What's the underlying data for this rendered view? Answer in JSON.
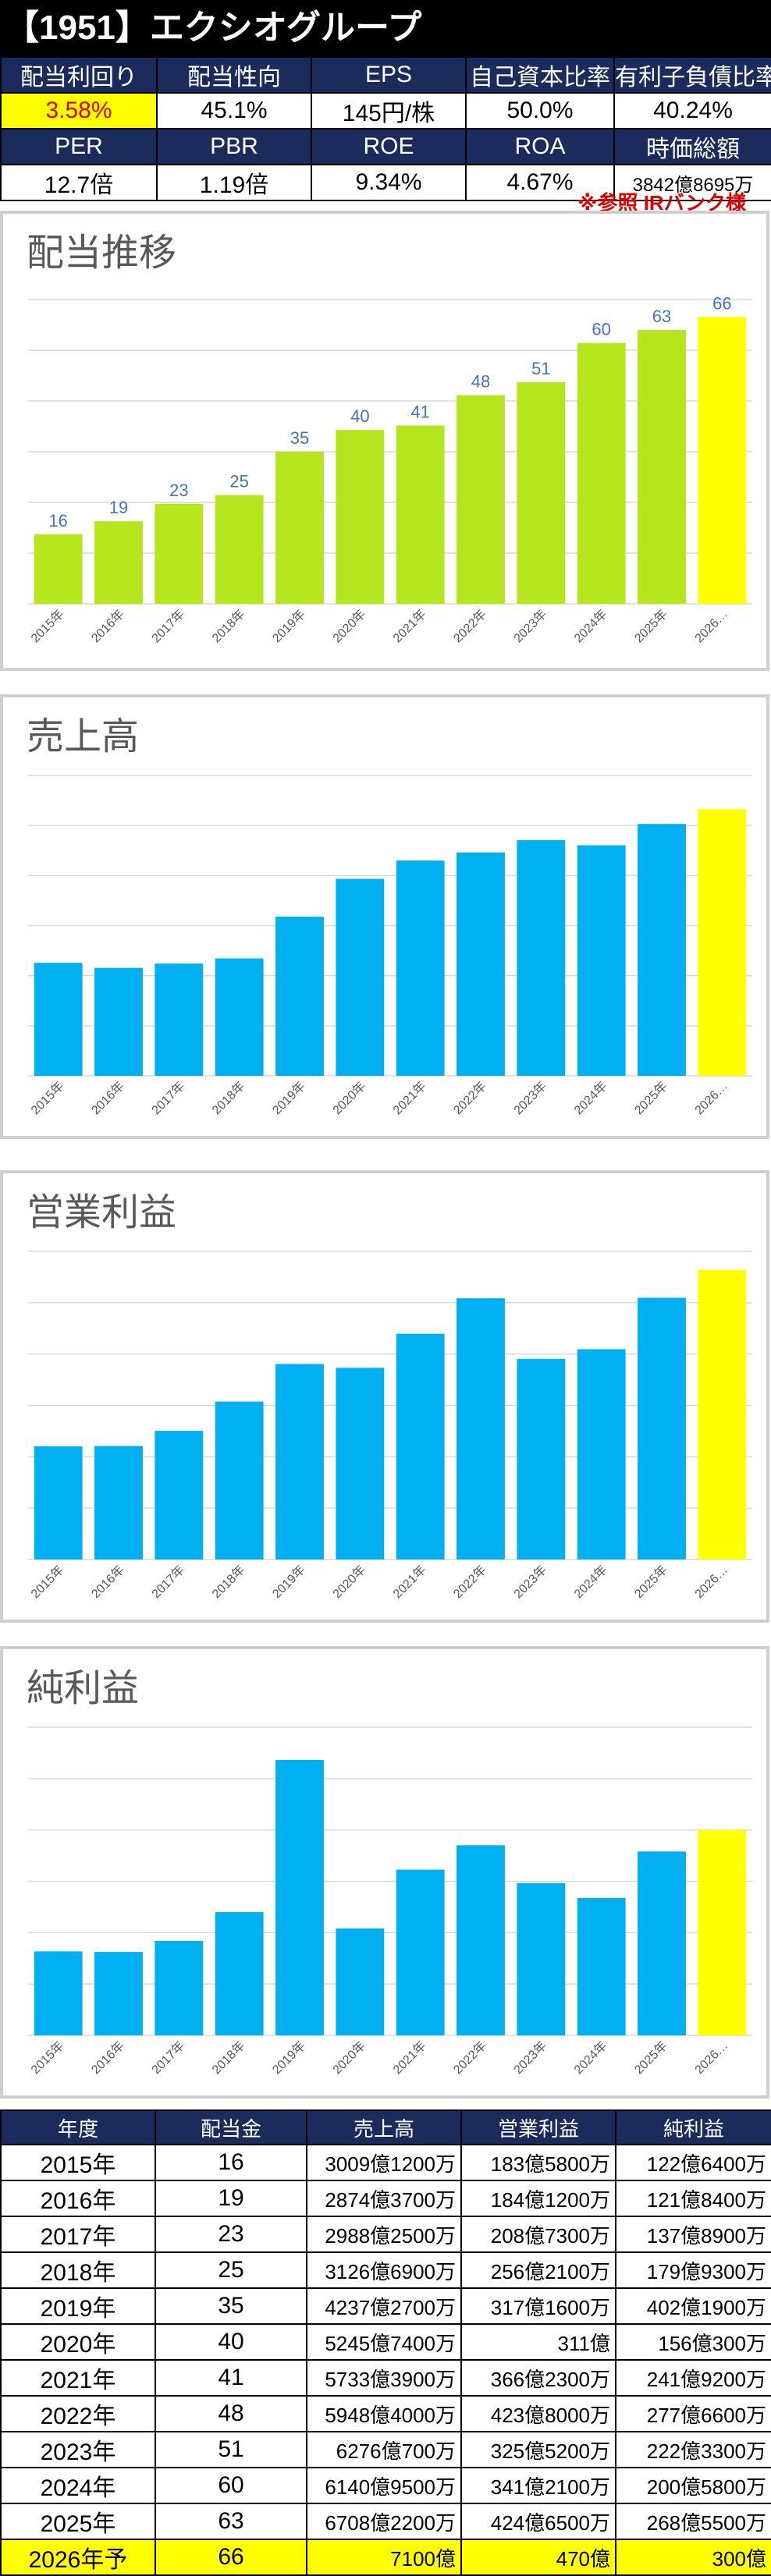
{
  "header": {
    "title": "【1951】エクシオグループ"
  },
  "metrics": {
    "row1": [
      {
        "label": "配当利回り",
        "value": "3.58%"
      },
      {
        "label": "配当性向",
        "value": "45.1%"
      },
      {
        "label": "EPS",
        "value": "145円/株"
      },
      {
        "label": "自己資本比率",
        "value": "50.0%"
      },
      {
        "label": "有利子負債比率",
        "value": "40.24%"
      }
    ],
    "row2": [
      {
        "label": "PER",
        "value": "12.7倍"
      },
      {
        "label": "PBR",
        "value": "1.19倍"
      },
      {
        "label": "ROE",
        "value": "9.34%"
      },
      {
        "label": "ROA",
        "value": "4.67%"
      },
      {
        "label": "時価総額",
        "value": "3842億8695万"
      }
    ]
  },
  "source_note": "※参照 IRバンク様",
  "colors": {
    "green": "#b5e61d",
    "blue": "#00b0f0",
    "yellow": "#ffff00",
    "navy": "#1a2b5c",
    "label_blue": "#4472c4"
  },
  "chart_data": [
    {
      "type": "bar",
      "title": "配当推移",
      "categories": [
        "2015年",
        "2016年",
        "2017年",
        "2018年",
        "2019年",
        "2020年",
        "2021年",
        "2022年",
        "2023年",
        "2024年",
        "2025年",
        "2026…"
      ],
      "values": [
        16,
        19,
        23,
        25,
        35,
        40,
        41,
        48,
        51,
        60,
        63,
        66
      ],
      "data_labels": [
        "16",
        "19",
        "23",
        "25",
        "35",
        "40",
        "41",
        "48",
        "51",
        "60",
        "63",
        "66"
      ],
      "ylim": [
        0,
        70
      ],
      "grid": true,
      "unit": "円"
    },
    {
      "type": "bar",
      "title": "売上高",
      "categories": [
        "2015年",
        "2016年",
        "2017年",
        "2018年",
        "2019年",
        "2020年",
        "2021年",
        "2022年",
        "2023年",
        "2024年",
        "2025年",
        "2026…"
      ],
      "values": [
        3009.12,
        2874.37,
        2988.25,
        3126.69,
        4237.27,
        5245.74,
        5733.39,
        5948.4,
        6276.07,
        6140.95,
        6708.22,
        7100
      ],
      "ylim": [
        0,
        8000
      ],
      "grid": true,
      "unit": "億円"
    },
    {
      "type": "bar",
      "title": "営業利益",
      "categories": [
        "2015年",
        "2016年",
        "2017年",
        "2018年",
        "2019年",
        "2020年",
        "2021年",
        "2022年",
        "2023年",
        "2024年",
        "2025年",
        "2026…"
      ],
      "values": [
        183.58,
        184.12,
        208.73,
        256.21,
        317.16,
        311,
        366.23,
        423.8,
        325.52,
        341.21,
        424.65,
        470
      ],
      "ylim": [
        0,
        500
      ],
      "grid": true,
      "unit": "億円"
    },
    {
      "type": "bar",
      "title": "純利益",
      "categories": [
        "2015年",
        "2016年",
        "2017年",
        "2018年",
        "2019年",
        "2020年",
        "2021年",
        "2022年",
        "2023年",
        "2024年",
        "2025年",
        "2026…"
      ],
      "values": [
        122.64,
        121.84,
        137.89,
        179.93,
        402.19,
        156.03,
        241.92,
        277.66,
        222.33,
        200.58,
        268.55,
        300
      ],
      "ylim": [
        0,
        450
      ],
      "grid": true,
      "unit": "億円"
    }
  ],
  "table": {
    "headers": [
      "年度",
      "配当金",
      "売上高",
      "営業利益",
      "純利益"
    ],
    "rows": [
      [
        "2015年",
        "16",
        "3009億1200万",
        "183億5800万",
        "122億6400万"
      ],
      [
        "2016年",
        "19",
        "2874億3700万",
        "184億1200万",
        "121億8400万"
      ],
      [
        "2017年",
        "23",
        "2988億2500万",
        "208億7300万",
        "137億8900万"
      ],
      [
        "2018年",
        "25",
        "3126億6900万",
        "256億2100万",
        "179億9300万"
      ],
      [
        "2019年",
        "35",
        "4237億2700万",
        "317億1600万",
        "402億1900万"
      ],
      [
        "2020年",
        "40",
        "5245億7400万",
        "311億",
        "156億300万"
      ],
      [
        "2021年",
        "41",
        "5733億3900万",
        "366億2300万",
        "241億9200万"
      ],
      [
        "2022年",
        "48",
        "5948億4000万",
        "423億8000万",
        "277億6600万"
      ],
      [
        "2023年",
        "51",
        "6276億700万",
        "325億5200万",
        "222億3300万"
      ],
      [
        "2024年",
        "60",
        "6140億9500万",
        "341億2100万",
        "200億5800万"
      ],
      [
        "2025年",
        "63",
        "6708億2200万",
        "424億6500万",
        "268億5500万"
      ],
      [
        "2026年予",
        "66",
        "7100億",
        "470億",
        "300億"
      ]
    ]
  }
}
